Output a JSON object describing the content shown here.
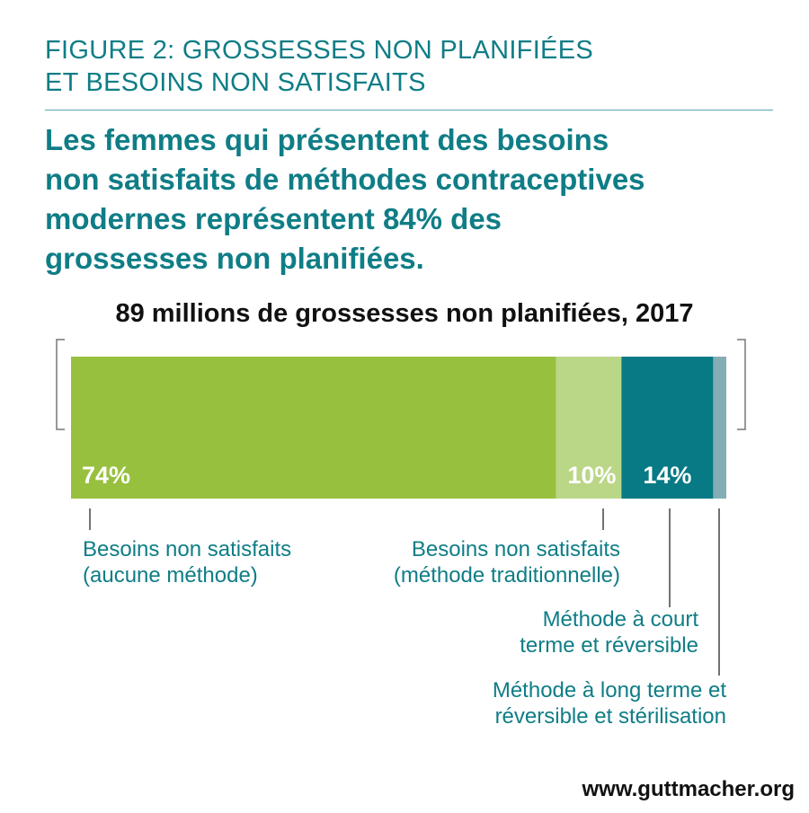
{
  "figure_label": [
    "FIGURE 2: GROSSESSES NON PLANIFIÉES",
    "ET BESOINS NON SATISFAITS"
  ],
  "headline": [
    "Les femmes qui présentent des besoins",
    "non satisfaits de méthodes contraceptives",
    "modernes représentent 84% des",
    "grossesses non planifiées."
  ],
  "url": "www.guttmacher.org",
  "chart_data": {
    "type": "bar",
    "orientation": "horizontal-stacked",
    "title": "89 millions de grossesses non planifiées, 2017",
    "categories": [
      "Besoins non satisfaits (aucune méthode)",
      "Besoins non satisfaits (méthode traditionnelle)",
      "Méthode à court terme et réversible",
      "Méthode à long terme et réversible et stérilisation"
    ],
    "values": [
      74,
      10,
      14,
      2
    ],
    "data_labels": [
      "74%",
      "10%",
      "14%",
      ""
    ],
    "label_lines": [
      [
        "Besoins non satisfaits",
        "(aucune méthode)"
      ],
      [
        "Besoins non satisfaits",
        "(méthode traditionnelle)"
      ],
      [
        "Méthode à court",
        "terme et réversible"
      ],
      [
        "Méthode à long terme et",
        "réversible et stérilisation"
      ]
    ],
    "colors": [
      "#97c03e",
      "#bad687",
      "#077a85",
      "#85adb5"
    ],
    "xlim": [
      0,
      100
    ]
  }
}
